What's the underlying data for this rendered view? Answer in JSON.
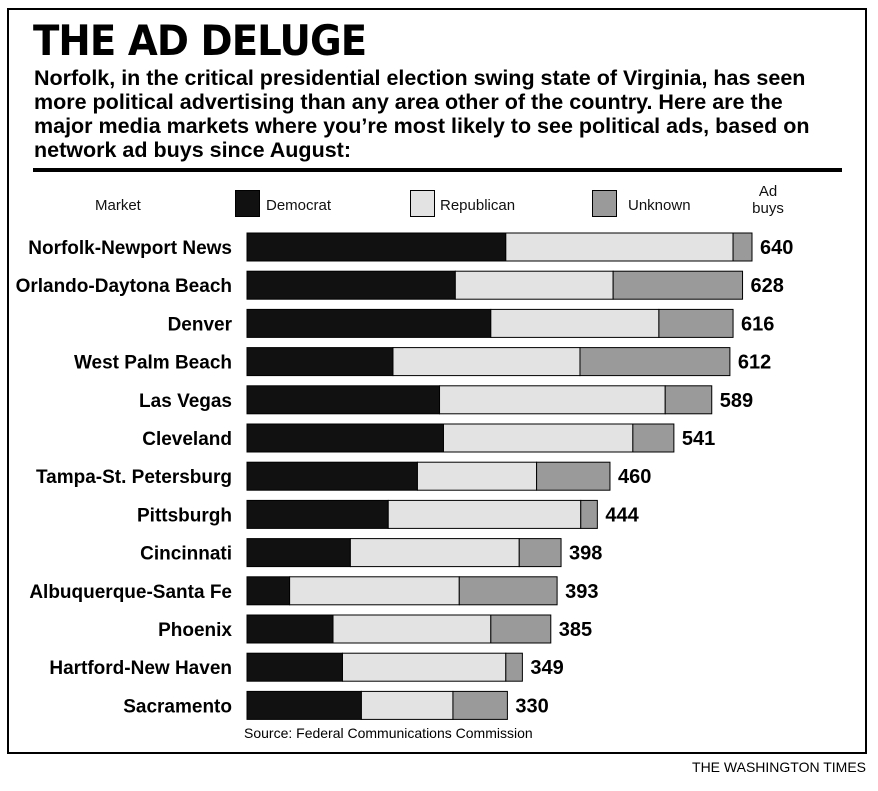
{
  "title": "THE AD DELUGE",
  "subtitle": "Norfolk, in the critical presidential election swing state of Virginia, has seen more political advertising than any area other of the country. Here are the major media markets where you’re most likely to see political ads, based on network ad buys since August:",
  "legend": {
    "market_label": "Market",
    "democrat": "Democrat",
    "republican": "Republican",
    "unknown": "Unknown",
    "ad_buys_label": "Ad buys"
  },
  "colors": {
    "democrat": "#111111",
    "republican": "#e3e3e3",
    "unknown": "#9a9a9a"
  },
  "source": "Source: Federal Communications Commission",
  "credit": "THE WASHINGTON TIMES",
  "chart_data": {
    "type": "bar",
    "orientation": "horizontal",
    "stacked": true,
    "categories": [
      "Norfolk-Newport News",
      "Orlando-Daytona Beach",
      "Denver",
      "West Palm Beach",
      "Las Vegas",
      "Cleveland",
      "Tampa-St. Petersburg",
      "Pittsburgh",
      "Cincinnati",
      "Albuquerque-Santa Fe",
      "Phoenix",
      "Hartford-New Haven",
      "Sacramento"
    ],
    "series": [
      {
        "name": "Democrat",
        "values": [
          328,
          264,
          309,
          185,
          244,
          249,
          216,
          179,
          131,
          54,
          109,
          121,
          145
        ]
      },
      {
        "name": "Republican",
        "values": [
          288,
          200,
          213,
          237,
          286,
          240,
          151,
          244,
          214,
          215,
          200,
          207,
          116
        ]
      },
      {
        "name": "Unknown",
        "values": [
          24,
          164,
          94,
          190,
          59,
          52,
          93,
          21,
          53,
          124,
          76,
          21,
          69
        ]
      }
    ],
    "totals": [
      640,
      628,
      616,
      612,
      589,
      541,
      460,
      444,
      398,
      393,
      385,
      349,
      330
    ],
    "xlim": [
      0,
      640
    ],
    "grid": false,
    "legend_position": "top"
  }
}
